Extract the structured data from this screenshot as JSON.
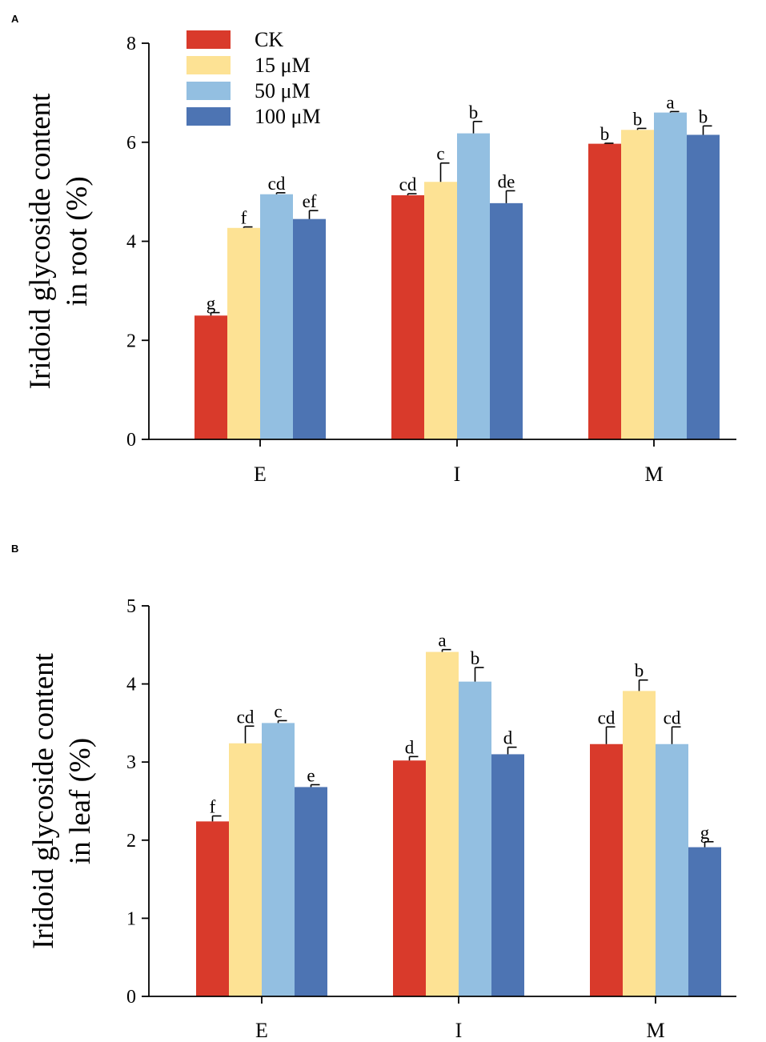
{
  "chart_data": [
    {
      "type": "bar",
      "panel": "A",
      "ylabel_lines": [
        "Iridoid glycoside content",
        "in root (%)"
      ],
      "xlabel": "",
      "categories": [
        "E",
        "I",
        "M"
      ],
      "ylim": [
        0,
        8
      ],
      "yticks": [
        0,
        2,
        4,
        6,
        8
      ],
      "legend": "top-left",
      "series": [
        {
          "name": "CK",
          "color": "#d93a2b",
          "values": [
            2.5,
            4.93,
            5.97
          ],
          "errors": [
            0.06,
            0.03,
            0.01
          ],
          "letters": [
            "g",
            "cd",
            "b"
          ]
        },
        {
          "name": "15 μM",
          "color": "#fde294",
          "values": [
            4.27,
            5.2,
            6.25
          ],
          "errors": [
            0.02,
            0.38,
            0.03
          ],
          "letters": [
            "f",
            "c",
            "b"
          ]
        },
        {
          "name": "50 μM",
          "color": "#93bfe1",
          "values": [
            4.95,
            6.18,
            6.6
          ],
          "errors": [
            0.03,
            0.24,
            0.02
          ],
          "letters": [
            "cd",
            "b",
            "a"
          ]
        },
        {
          "name": "100 μM",
          "color": "#4d74b3",
          "values": [
            4.45,
            4.77,
            6.15
          ],
          "errors": [
            0.17,
            0.25,
            0.18
          ],
          "letters": [
            "ef",
            "de",
            "b"
          ]
        }
      ]
    },
    {
      "type": "bar",
      "panel": "B",
      "ylabel_lines": [
        "Iridoid glycoside content",
        "in leaf (%)"
      ],
      "xlabel": "",
      "categories": [
        "E",
        "I",
        "M"
      ],
      "ylim": [
        0,
        5
      ],
      "yticks": [
        0,
        1,
        2,
        3,
        4,
        5
      ],
      "series": [
        {
          "name": "CK",
          "color": "#d93a2b",
          "values": [
            2.24,
            3.02,
            3.23
          ],
          "errors": [
            0.07,
            0.05,
            0.22
          ],
          "letters": [
            "f",
            "d",
            "cd"
          ]
        },
        {
          "name": "15 μM",
          "color": "#fde294",
          "values": [
            3.24,
            4.41,
            3.91
          ],
          "errors": [
            0.22,
            0.03,
            0.14
          ],
          "letters": [
            "cd",
            "a",
            "b"
          ]
        },
        {
          "name": "50 μM",
          "color": "#93bfe1",
          "values": [
            3.5,
            4.03,
            3.23
          ],
          "errors": [
            0.03,
            0.18,
            0.22
          ],
          "letters": [
            "c",
            "b",
            "cd"
          ]
        },
        {
          "name": "100 μM",
          "color": "#4d74b3",
          "values": [
            2.68,
            3.1,
            1.91
          ],
          "errors": [
            0.03,
            0.09,
            0.07
          ],
          "letters": [
            "e",
            "d",
            "g"
          ]
        }
      ]
    }
  ]
}
